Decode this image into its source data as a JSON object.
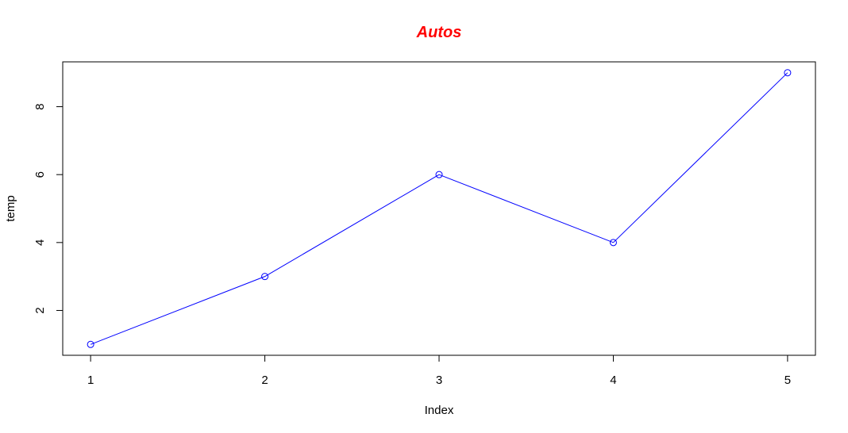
{
  "chart_data": {
    "type": "line",
    "title": "Autos",
    "title_color": "#ff0000",
    "xlabel": "Index",
    "ylabel": "temp",
    "x": [
      1,
      2,
      3,
      4,
      5
    ],
    "series": [
      {
        "values": [
          1,
          3,
          6,
          4,
          9
        ],
        "color": "#0000ff",
        "marker": "open-circle"
      }
    ],
    "xlim": [
      0.84,
      5.16
    ],
    "ylim": [
      0.68,
      9.32
    ],
    "x_ticks": [
      1,
      2,
      3,
      4,
      5
    ],
    "y_ticks": [
      2,
      4,
      6,
      8
    ],
    "grid": false,
    "legend": "none"
  }
}
